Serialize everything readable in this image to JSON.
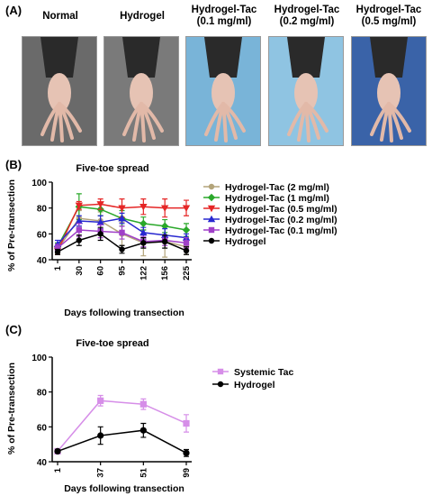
{
  "panel_a": {
    "label": "(A)",
    "photos": [
      {
        "title_lines": [
          "Normal"
        ],
        "bg": "#6a6a6a"
      },
      {
        "title_lines": [
          "Hydrogel"
        ],
        "bg": "#7a7a7a"
      },
      {
        "title_lines": [
          "Hydrogel-Tac",
          "(0.1 mg/ml)"
        ],
        "bg": "#79b4d8"
      },
      {
        "title_lines": [
          "Hydrogel-Tac",
          "(0.2 mg/ml)"
        ],
        "bg": "#8fc4e2"
      },
      {
        "title_lines": [
          "Hydrogel-Tac",
          "(0.5 mg/ml)"
        ],
        "bg": "#3a63a8"
      }
    ]
  },
  "chart_data": [
    {
      "type": "line",
      "label": "(B)",
      "title": "Five-toe spread",
      "xlabel": "Days following transection",
      "ylabel": "% of Pre-transection",
      "x": [
        "1",
        "30",
        "60",
        "95",
        "122",
        "156",
        "225"
      ],
      "ylim": [
        40,
        100
      ],
      "yticks": [
        40,
        60,
        80,
        100
      ],
      "series": [
        {
          "name": "Hydrogel-Tac (2 mg/ml)",
          "color": "#b3a47a",
          "marker": "circle",
          "values": [
            48,
            72,
            70,
            60,
            53,
            54,
            50
          ],
          "err": [
            3,
            6,
            7,
            9,
            10,
            12,
            6
          ]
        },
        {
          "name": "Hydrogel-Tac (1 mg/ml)",
          "color": "#2aa82a",
          "marker": "diamond",
          "values": [
            50,
            81,
            79,
            72,
            68,
            66,
            63
          ],
          "err": [
            3,
            10,
            5,
            6,
            5,
            5,
            5
          ]
        },
        {
          "name": "Hydrogel-Tac (0.5 mg/ml)",
          "color": "#e52626",
          "marker": "triangle-down",
          "values": [
            47,
            82,
            83,
            80,
            81,
            80,
            80
          ],
          "err": [
            3,
            3,
            4,
            7,
            6,
            7,
            6
          ]
        },
        {
          "name": "Hydrogel-Tac (0.2 mg/ml)",
          "color": "#2828d0",
          "marker": "triangle-up",
          "values": [
            52,
            70,
            69,
            72,
            61,
            59,
            57
          ],
          "err": [
            3,
            4,
            5,
            4,
            4,
            5,
            3
          ]
        },
        {
          "name": "Hydrogel-Tac (0.1 mg/ml)",
          "color": "#a040c8",
          "marker": "square",
          "values": [
            49,
            63,
            62,
            61,
            54,
            55,
            53
          ],
          "err": [
            3,
            5,
            5,
            5,
            4,
            4,
            4
          ]
        },
        {
          "name": "Hydrogel",
          "color": "#000000",
          "marker": "circle",
          "values": [
            46,
            55,
            60,
            48,
            53,
            54,
            47
          ],
          "err": [
            2,
            4,
            5,
            3,
            4,
            5,
            3
          ]
        }
      ]
    },
    {
      "type": "line",
      "label": "(C)",
      "title": "Five-toe spread",
      "xlabel": "Days following transection",
      "ylabel": "% of Pre-transection",
      "x": [
        "1",
        "37",
        "51",
        "99"
      ],
      "ylim": [
        40,
        100
      ],
      "yticks": [
        40,
        60,
        80,
        100
      ],
      "series": [
        {
          "name": "Systemic Tac",
          "color": "#d68ee8",
          "marker": "square",
          "values": [
            46,
            75,
            73,
            62
          ],
          "err": [
            1,
            3,
            3,
            5
          ]
        },
        {
          "name": "Hydrogel",
          "color": "#000000",
          "marker": "circle",
          "values": [
            46,
            55,
            58,
            45
          ],
          "err": [
            1,
            5,
            4,
            2
          ]
        }
      ]
    }
  ]
}
